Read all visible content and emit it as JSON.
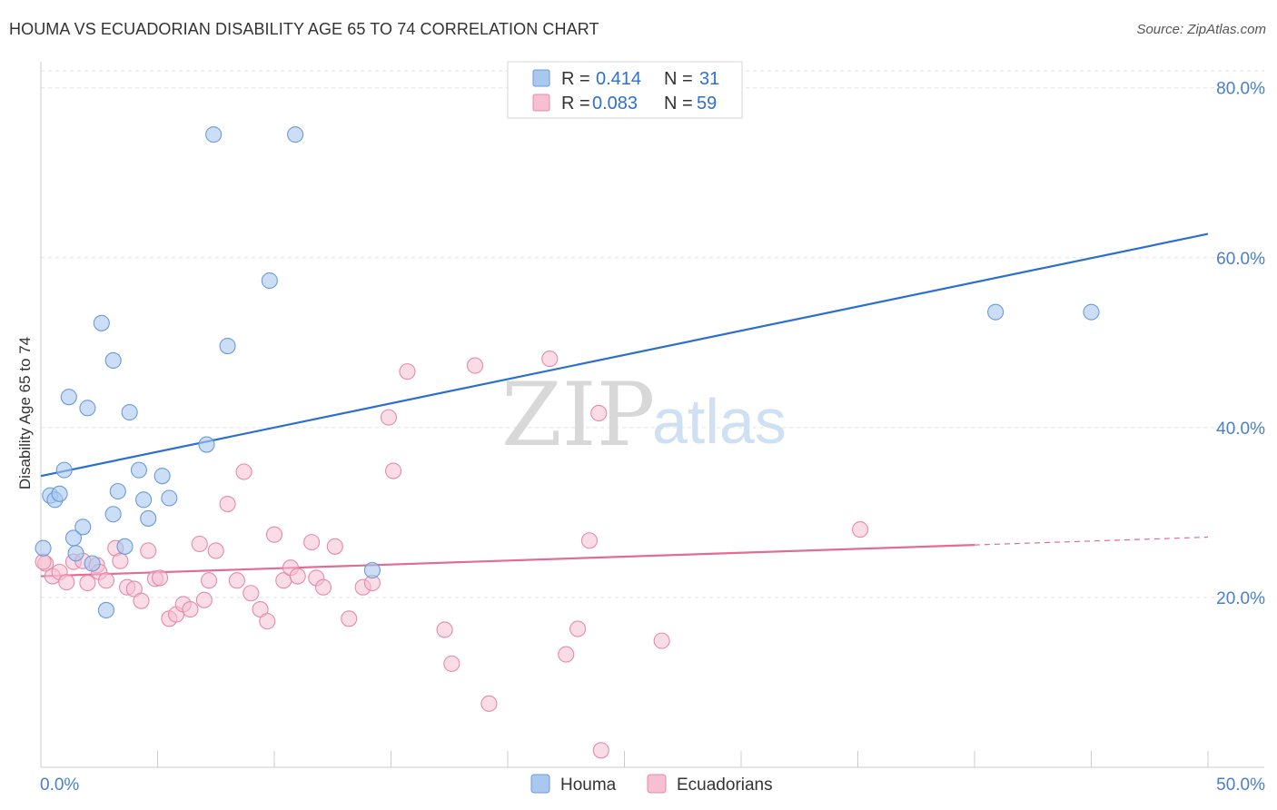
{
  "title": "HOUMA VS ECUADORIAN DISABILITY AGE 65 TO 74 CORRELATION CHART",
  "source": "Source: ZipAtlas.com",
  "watermark": {
    "zip": "ZIP",
    "atlas": "atlas"
  },
  "colors": {
    "houma_fill": "#a9c8f0",
    "houma_stroke": "#6a9bd8",
    "houma_line": "#2a6fd0",
    "ecuadorian_fill": "#f6bfd2",
    "ecuadorian_stroke": "#e48aaa",
    "ecuadorian_line": "#e06c97",
    "grid": "#e2e2e2",
    "tick_label": "#4a7fc9"
  },
  "legend": {
    "r_label": "R =",
    "n_label": "N =",
    "houma": {
      "r": "0.414",
      "n": "31"
    },
    "ecuadorian": {
      "r": "0.083",
      "n": "59"
    }
  },
  "chart_data": {
    "type": "scatter",
    "title": "HOUMA VS ECUADORIAN DISABILITY AGE 65 TO 74 CORRELATION CHART",
    "xlabel": "",
    "ylabel": "Disability Age 65 to 74",
    "xlim": [
      0,
      50
    ],
    "ylim": [
      0,
      82
    ],
    "x_tick_labels": [
      "0.0%",
      "50.0%"
    ],
    "y_ticks": [
      20,
      40,
      60,
      80
    ],
    "y_tick_labels": [
      "20.0%",
      "40.0%",
      "60.0%",
      "80.0%"
    ],
    "legend_position": "top-center",
    "series": [
      {
        "name": "Houma",
        "points": [
          [
            0.1,
            25.8
          ],
          [
            0.4,
            32.0
          ],
          [
            0.6,
            31.5
          ],
          [
            0.8,
            32.2
          ],
          [
            1.0,
            35.0
          ],
          [
            1.2,
            43.6
          ],
          [
            1.4,
            27.0
          ],
          [
            1.5,
            25.2
          ],
          [
            1.8,
            28.3
          ],
          [
            2.0,
            42.3
          ],
          [
            2.2,
            24.0
          ],
          [
            2.6,
            52.3
          ],
          [
            2.8,
            18.5
          ],
          [
            3.1,
            29.8
          ],
          [
            3.1,
            47.9
          ],
          [
            3.3,
            32.5
          ],
          [
            3.6,
            26.0
          ],
          [
            3.8,
            41.8
          ],
          [
            4.2,
            35.0
          ],
          [
            4.4,
            31.5
          ],
          [
            4.6,
            29.3
          ],
          [
            5.2,
            34.3
          ],
          [
            5.5,
            31.7
          ],
          [
            7.1,
            38.0
          ],
          [
            7.4,
            74.5
          ],
          [
            8.0,
            49.6
          ],
          [
            9.8,
            57.3
          ],
          [
            10.9,
            74.5
          ],
          [
            14.2,
            23.2
          ],
          [
            40.9,
            53.6
          ],
          [
            45.0,
            53.6
          ]
        ],
        "trend": {
          "x": [
            0,
            50
          ],
          "y": [
            34.3,
            62.8
          ]
        }
      },
      {
        "name": "Ecuadorians",
        "points": [
          [
            0.2,
            24.0
          ],
          [
            0.5,
            22.5
          ],
          [
            0.8,
            23.0
          ],
          [
            1.1,
            21.8
          ],
          [
            1.4,
            24.2
          ],
          [
            1.8,
            24.3
          ],
          [
            2.0,
            21.7
          ],
          [
            2.4,
            23.8
          ],
          [
            2.5,
            23.0
          ],
          [
            2.8,
            22.0
          ],
          [
            3.2,
            25.8
          ],
          [
            3.4,
            24.3
          ],
          [
            3.7,
            21.2
          ],
          [
            4.0,
            21.0
          ],
          [
            4.3,
            19.6
          ],
          [
            4.6,
            25.5
          ],
          [
            4.9,
            22.2
          ],
          [
            5.1,
            22.3
          ],
          [
            5.5,
            17.5
          ],
          [
            5.8,
            18.0
          ],
          [
            6.1,
            19.2
          ],
          [
            6.4,
            18.6
          ],
          [
            6.8,
            26.3
          ],
          [
            7.0,
            19.7
          ],
          [
            7.2,
            22.0
          ],
          [
            7.5,
            25.5
          ],
          [
            8.0,
            31.0
          ],
          [
            8.4,
            22.0
          ],
          [
            8.7,
            34.8
          ],
          [
            9.0,
            20.5
          ],
          [
            9.4,
            18.6
          ],
          [
            9.7,
            17.2
          ],
          [
            10.0,
            27.4
          ],
          [
            10.4,
            22.0
          ],
          [
            10.7,
            23.5
          ],
          [
            11.0,
            22.5
          ],
          [
            11.6,
            26.5
          ],
          [
            11.8,
            22.3
          ],
          [
            12.1,
            21.2
          ],
          [
            12.6,
            26.0
          ],
          [
            13.2,
            17.5
          ],
          [
            13.8,
            21.2
          ],
          [
            14.2,
            21.7
          ],
          [
            14.9,
            41.2
          ],
          [
            15.1,
            34.9
          ],
          [
            15.7,
            46.6
          ],
          [
            17.3,
            16.2
          ],
          [
            17.6,
            12.2
          ],
          [
            18.6,
            47.3
          ],
          [
            19.2,
            7.5
          ],
          [
            21.8,
            48.1
          ],
          [
            22.5,
            13.3
          ],
          [
            23.0,
            16.3
          ],
          [
            23.5,
            26.7
          ],
          [
            23.9,
            41.7
          ],
          [
            24.0,
            2.0
          ],
          [
            26.6,
            14.9
          ],
          [
            35.1,
            28.0
          ],
          [
            0.1,
            24.2
          ]
        ],
        "trend": {
          "x": [
            0,
            50
          ],
          "y": [
            22.5,
            27.1
          ],
          "solid_until_x": 40
        }
      }
    ]
  },
  "bottom_legend": [
    {
      "label": "Houma"
    },
    {
      "label": "Ecuadorians"
    }
  ]
}
